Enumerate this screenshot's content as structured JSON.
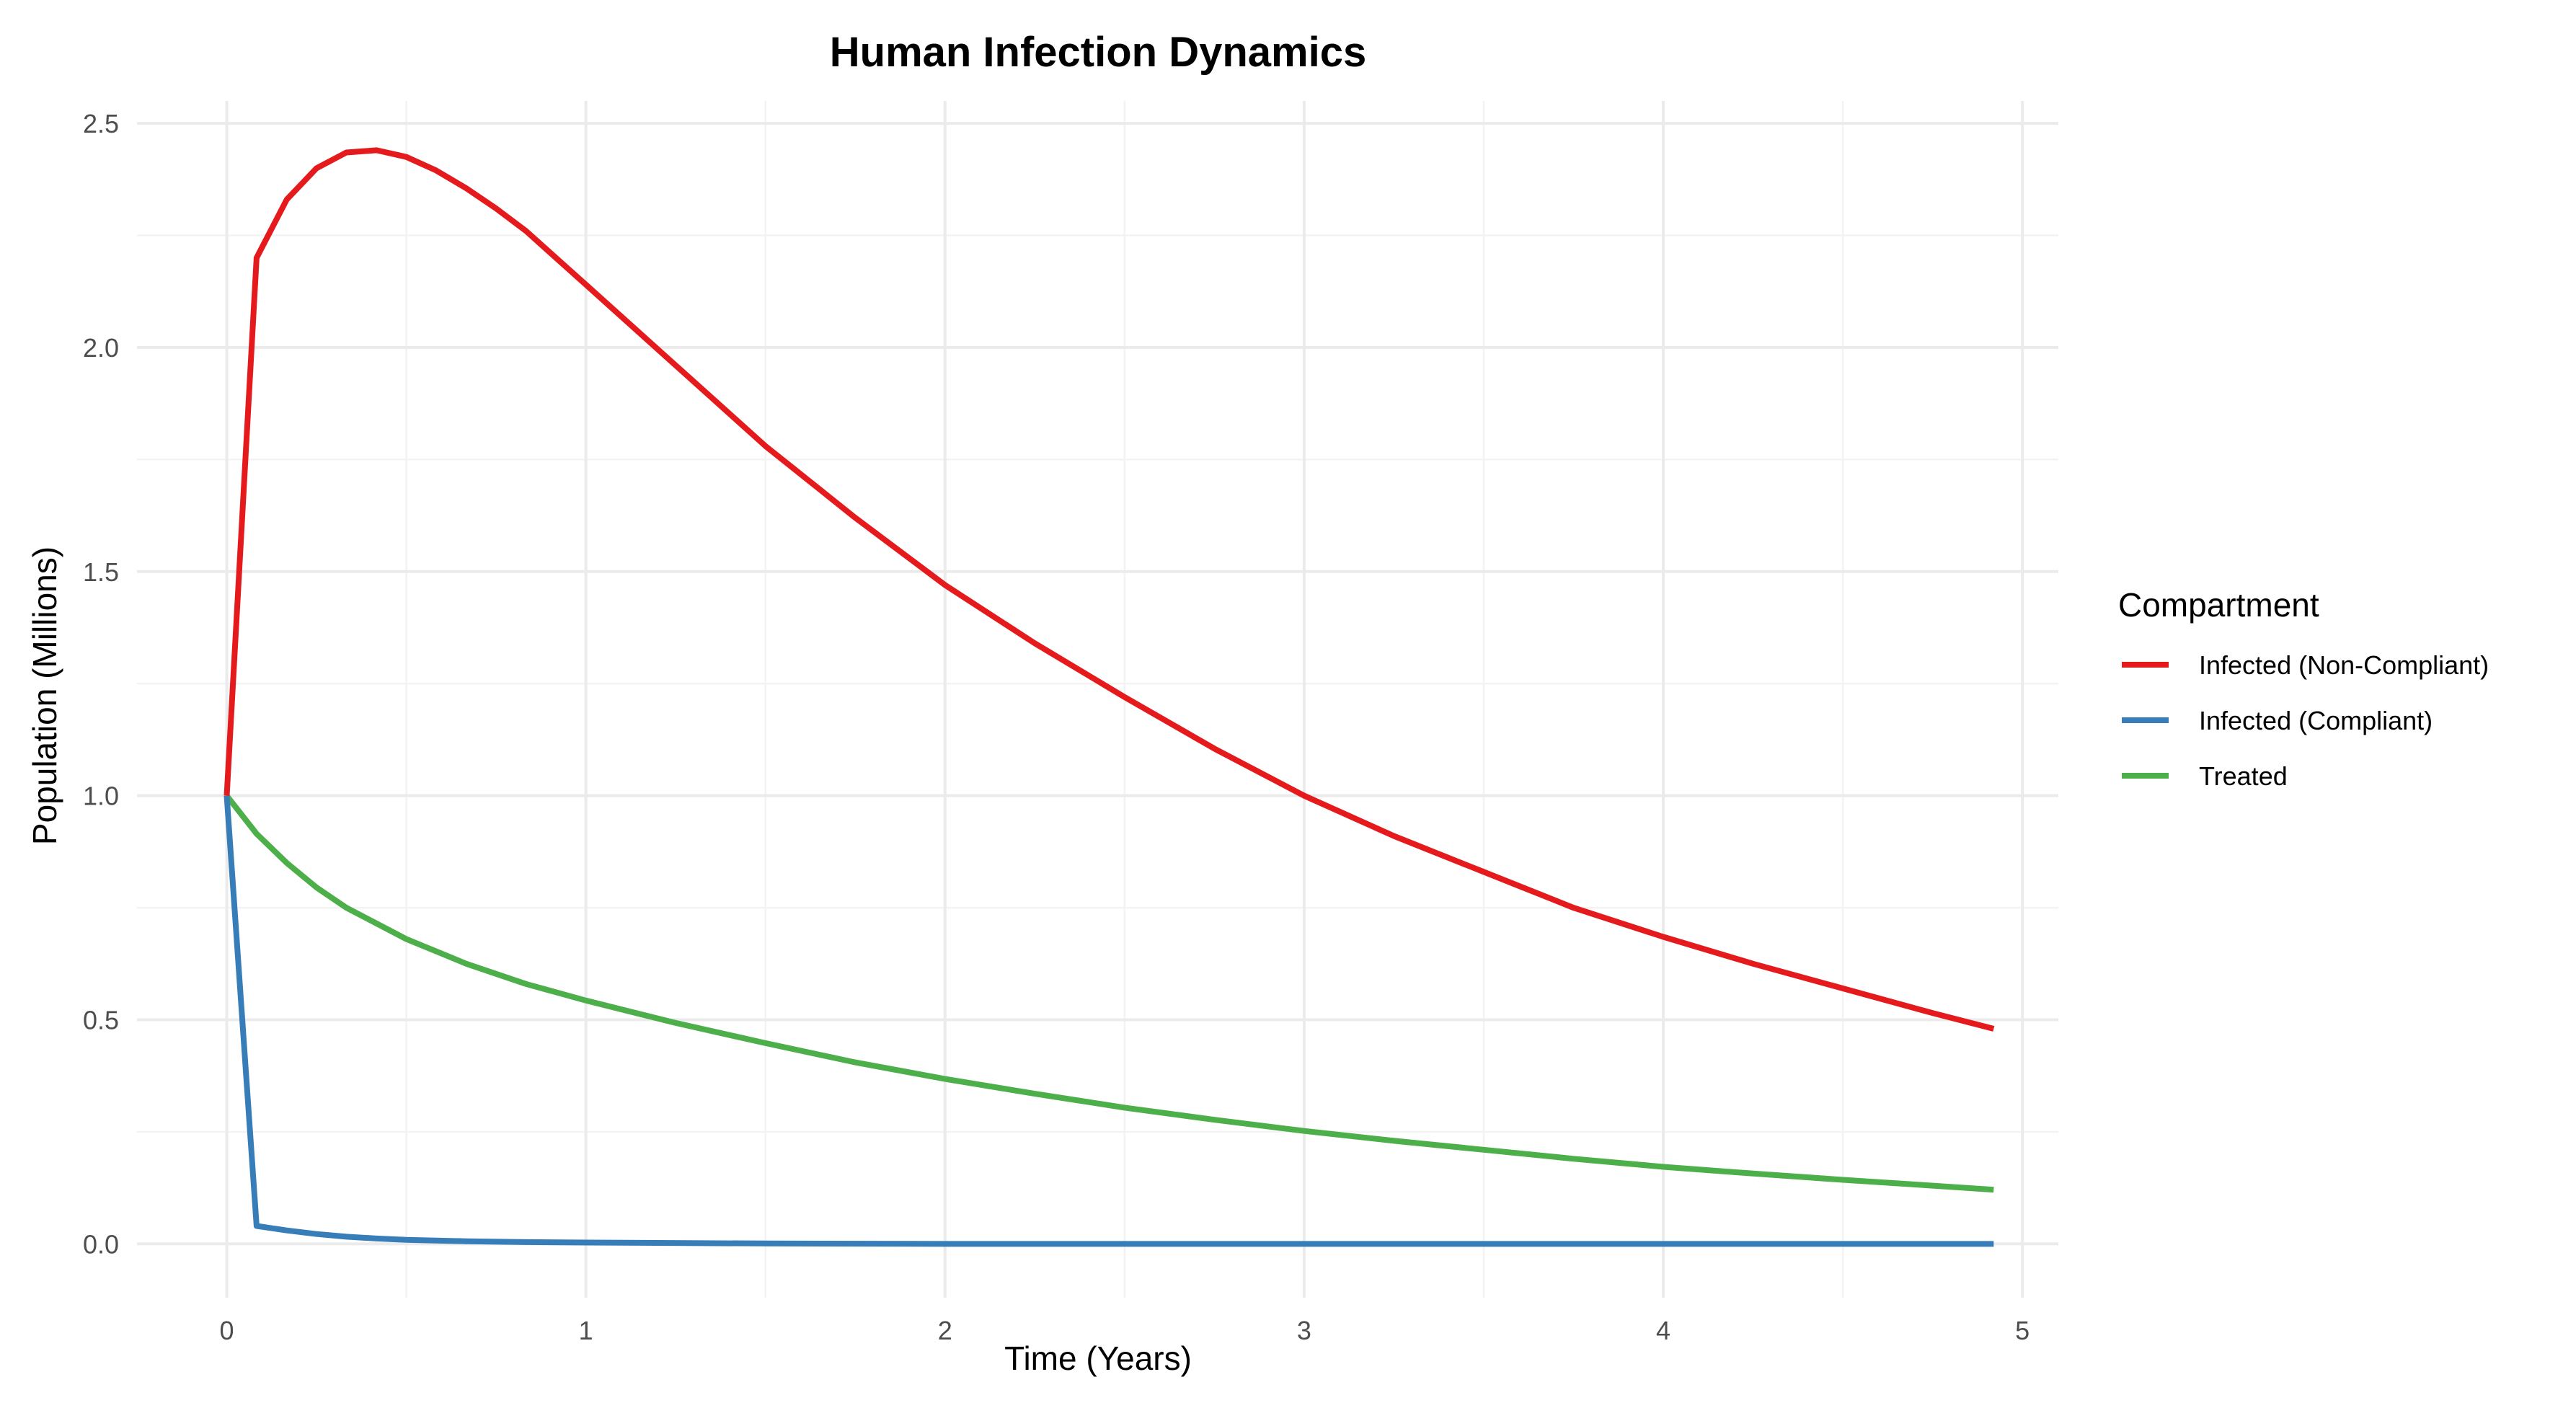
{
  "chart_data": {
    "type": "line",
    "title": "Human Infection Dynamics",
    "xlabel": "Time (Years)",
    "ylabel": "Population (Millions)",
    "xlim": [
      -0.25,
      5.1
    ],
    "ylim": [
      -0.12,
      2.55
    ],
    "x_ticks": [
      0,
      1,
      2,
      3,
      4,
      5
    ],
    "x_tick_labels": [
      "0",
      "1",
      "2",
      "3",
      "4",
      "5"
    ],
    "y_ticks": [
      0,
      0.5,
      1,
      1.5,
      2,
      2.5
    ],
    "y_tick_labels": [
      "0.0",
      "0.5",
      "1.0",
      "1.5",
      "2.0",
      "2.5"
    ],
    "x_minor": [
      0.5,
      1.5,
      2.5,
      3.5,
      4.5
    ],
    "y_minor": [
      0.25,
      0.75,
      1.25,
      1.75,
      2.25
    ],
    "grid": true,
    "legend": {
      "title": "Compartment",
      "placement": "right"
    },
    "series": [
      {
        "name": "Infected (Non-Compliant)",
        "color": "#e41a1c",
        "points": [
          [
            0,
            1.0
          ],
          [
            0.083,
            2.2
          ],
          [
            0.167,
            2.33
          ],
          [
            0.25,
            2.4
          ],
          [
            0.333,
            2.435
          ],
          [
            0.417,
            2.44
          ],
          [
            0.5,
            2.425
          ],
          [
            0.583,
            2.395
          ],
          [
            0.667,
            2.355
          ],
          [
            0.75,
            2.31
          ],
          [
            0.833,
            2.26
          ],
          [
            1.0,
            2.14
          ],
          [
            1.25,
            1.96
          ],
          [
            1.5,
            1.78
          ],
          [
            1.75,
            1.62
          ],
          [
            2.0,
            1.47
          ],
          [
            2.25,
            1.34
          ],
          [
            2.5,
            1.22
          ],
          [
            2.75,
            1.105
          ],
          [
            3.0,
            1.0
          ],
          [
            3.25,
            0.91
          ],
          [
            3.5,
            0.83
          ],
          [
            3.75,
            0.75
          ],
          [
            4.0,
            0.685
          ],
          [
            4.25,
            0.625
          ],
          [
            4.5,
            0.57
          ],
          [
            4.75,
            0.515
          ],
          [
            4.92,
            0.48
          ]
        ]
      },
      {
        "name": "Infected (Compliant)",
        "color": "#377eb8",
        "points": [
          [
            0,
            1.0
          ],
          [
            0.083,
            0.04
          ],
          [
            0.167,
            0.03
          ],
          [
            0.25,
            0.022
          ],
          [
            0.333,
            0.016
          ],
          [
            0.417,
            0.012
          ],
          [
            0.5,
            0.009
          ],
          [
            0.667,
            0.006
          ],
          [
            0.833,
            0.004
          ],
          [
            1.0,
            0.003
          ],
          [
            1.5,
            0.001
          ],
          [
            2.0,
            0.0
          ],
          [
            3.0,
            0.0
          ],
          [
            4.0,
            0.0
          ],
          [
            4.92,
            0.0
          ]
        ]
      },
      {
        "name": "Treated",
        "color": "#4daf4a",
        "points": [
          [
            0,
            1.0
          ],
          [
            0.083,
            0.915
          ],
          [
            0.167,
            0.85
          ],
          [
            0.25,
            0.795
          ],
          [
            0.333,
            0.75
          ],
          [
            0.417,
            0.715
          ],
          [
            0.5,
            0.68
          ],
          [
            0.667,
            0.625
          ],
          [
            0.833,
            0.58
          ],
          [
            1.0,
            0.543
          ],
          [
            1.25,
            0.493
          ],
          [
            1.5,
            0.448
          ],
          [
            1.75,
            0.405
          ],
          [
            2.0,
            0.368
          ],
          [
            2.25,
            0.335
          ],
          [
            2.5,
            0.304
          ],
          [
            2.75,
            0.277
          ],
          [
            3.0,
            0.252
          ],
          [
            3.25,
            0.23
          ],
          [
            3.5,
            0.21
          ],
          [
            3.75,
            0.19
          ],
          [
            4.0,
            0.172
          ],
          [
            4.25,
            0.157
          ],
          [
            4.5,
            0.143
          ],
          [
            4.75,
            0.13
          ],
          [
            4.92,
            0.121
          ]
        ]
      }
    ]
  }
}
